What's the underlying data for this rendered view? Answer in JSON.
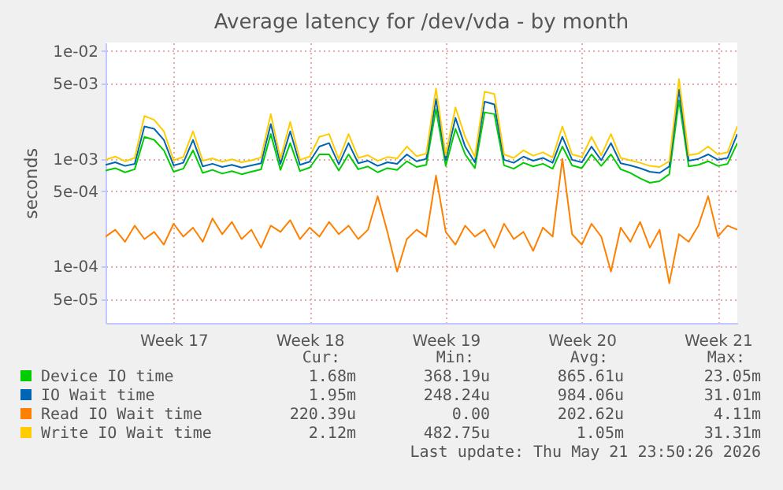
{
  "chart_data": {
    "type": "line",
    "title": "Average latency for /dev/vda - by month",
    "ylabel": "seconds",
    "log": "y",
    "grid": true,
    "legend": "bottom",
    "xlim": [
      "2026-04-20T00:00",
      "2026-05-22T12:00"
    ],
    "xticks": [
      {
        "value": "2026-04-23T12:00",
        "label": "Week 17"
      },
      {
        "value": "2026-04-30T12:00",
        "label": "Week 18"
      },
      {
        "value": "2026-05-07T12:00",
        "label": "Week 19"
      },
      {
        "value": "2026-05-14T12:00",
        "label": "Week 20"
      },
      {
        "value": "2026-05-21T12:00",
        "label": "Week 21"
      }
    ],
    "ylim": [
      3e-05,
      0.012
    ],
    "yticks": [
      {
        "value": 5e-05,
        "label": "5e-05"
      },
      {
        "value": 0.0001,
        "label": "1e-04"
      },
      {
        "value": 0.0005,
        "label": "5e-04"
      },
      {
        "value": 0.001,
        "label": "1e-03"
      },
      {
        "value": 0.005,
        "label": "5e-03"
      },
      {
        "value": 0.01,
        "label": "1e-02"
      }
    ],
    "x": [
      "2026-04-20T00:00",
      "2026-04-20T12:00",
      "2026-04-21T00:00",
      "2026-04-21T12:00",
      "2026-04-22T00:00",
      "2026-04-22T12:00",
      "2026-04-23T00:00",
      "2026-04-23T12:00",
      "2026-04-24T00:00",
      "2026-04-24T12:00",
      "2026-04-25T00:00",
      "2026-04-25T12:00",
      "2026-04-26T00:00",
      "2026-04-26T12:00",
      "2026-04-27T00:00",
      "2026-04-27T12:00",
      "2026-04-28T00:00",
      "2026-04-28T12:00",
      "2026-04-29T00:00",
      "2026-04-29T12:00",
      "2026-04-30T00:00",
      "2026-04-30T12:00",
      "2026-05-01T00:00",
      "2026-05-01T12:00",
      "2026-05-02T00:00",
      "2026-05-02T12:00",
      "2026-05-03T00:00",
      "2026-05-03T12:00",
      "2026-05-04T00:00",
      "2026-05-04T12:00",
      "2026-05-05T00:00",
      "2026-05-05T12:00",
      "2026-05-06T00:00",
      "2026-05-06T12:00",
      "2026-05-07T00:00",
      "2026-05-07T12:00",
      "2026-05-08T00:00",
      "2026-05-08T12:00",
      "2026-05-09T00:00",
      "2026-05-09T12:00",
      "2026-05-10T00:00",
      "2026-05-10T12:00",
      "2026-05-11T00:00",
      "2026-05-11T12:00",
      "2026-05-12T00:00",
      "2026-05-12T12:00",
      "2026-05-13T00:00",
      "2026-05-13T12:00",
      "2026-05-14T00:00",
      "2026-05-14T12:00",
      "2026-05-15T00:00",
      "2026-05-15T12:00",
      "2026-05-16T00:00",
      "2026-05-16T12:00",
      "2026-05-17T00:00",
      "2026-05-17T12:00",
      "2026-05-18T00:00",
      "2026-05-18T12:00",
      "2026-05-19T00:00",
      "2026-05-19T12:00",
      "2026-05-20T00:00",
      "2026-05-20T12:00",
      "2026-05-21T00:00",
      "2026-05-21T12:00",
      "2026-05-22T00:00",
      "2026-05-22T12:00"
    ],
    "series": [
      {
        "name": "Device IO time",
        "color": "#00cc00",
        "values": [
          0.00078,
          0.00082,
          0.00075,
          0.0008,
          0.0016,
          0.0015,
          0.0012,
          0.00076,
          0.00081,
          0.0012,
          0.00074,
          0.00079,
          0.00073,
          0.00077,
          0.00072,
          0.00076,
          0.0008,
          0.0017,
          0.00079,
          0.0014,
          0.00077,
          0.00083,
          0.0011,
          0.0011,
          0.00078,
          0.0011,
          0.0008,
          0.00085,
          0.00075,
          0.00082,
          0.00079,
          0.00095,
          0.00084,
          0.00088,
          0.0029,
          0.00086,
          0.0019,
          0.0011,
          0.00082,
          0.0027,
          0.0026,
          0.00087,
          0.00081,
          0.00092,
          0.00085,
          0.0009,
          0.00081,
          0.0013,
          0.00087,
          0.00082,
          0.0011,
          0.00086,
          0.0011,
          0.0008,
          0.00074,
          0.00066,
          0.0006,
          0.00062,
          0.00072,
          0.0035,
          0.00085,
          0.00088,
          0.00095,
          0.00086,
          0.0009,
          0.0014
        ]
      },
      {
        "name": "IO Wait time",
        "color": "#0066b3",
        "values": [
          0.00088,
          0.00093,
          0.00086,
          0.0009,
          0.002,
          0.0019,
          0.0015,
          0.00087,
          0.00092,
          0.0015,
          0.00085,
          0.0009,
          0.00084,
          0.00088,
          0.00083,
          0.00087,
          0.00091,
          0.0021,
          0.0009,
          0.0018,
          0.00088,
          0.00094,
          0.0013,
          0.0014,
          0.00089,
          0.0014,
          0.00091,
          0.00096,
          0.00086,
          0.00093,
          0.0009,
          0.0011,
          0.00095,
          0.001,
          0.0036,
          0.00097,
          0.0024,
          0.0013,
          0.00093,
          0.0034,
          0.0032,
          0.00098,
          0.00092,
          0.00105,
          0.00096,
          0.00102,
          0.00092,
          0.0016,
          0.00098,
          0.00093,
          0.0013,
          0.00097,
          0.0014,
          0.00091,
          0.00087,
          0.00082,
          0.00076,
          0.00074,
          0.00085,
          0.0044,
          0.00096,
          0.001,
          0.0011,
          0.00098,
          0.00102,
          0.0017
        ]
      },
      {
        "name": "Read IO Wait time",
        "color": "#ff8000",
        "values": [
          0.00019,
          0.00022,
          0.00017,
          0.00024,
          0.00018,
          0.00021,
          0.00016,
          0.00025,
          0.00019,
          0.00023,
          0.00017,
          0.00028,
          0.0002,
          0.00026,
          0.00018,
          0.00022,
          0.00015,
          0.00024,
          0.00021,
          0.00027,
          0.00018,
          0.00023,
          0.00019,
          0.00026,
          0.0002,
          0.00024,
          0.00018,
          0.00022,
          0.00045,
          0.00021,
          9e-05,
          0.00018,
          0.00022,
          0.00019,
          0.0007,
          0.00021,
          0.00016,
          0.00024,
          0.00019,
          0.00022,
          0.00015,
          0.00025,
          0.00018,
          0.00021,
          0.00014,
          0.00023,
          0.00019,
          0.001,
          0.0002,
          0.00016,
          0.00025,
          0.00019,
          9e-05,
          0.00023,
          0.00017,
          0.00026,
          0.00015,
          0.00022,
          7e-05,
          0.0002,
          0.00017,
          0.00024,
          0.00045,
          0.00019,
          0.00024,
          0.00022
        ]
      },
      {
        "name": "Write IO Wait time",
        "color": "#ffcc00",
        "values": [
          0.00098,
          0.00105,
          0.00095,
          0.00102,
          0.0025,
          0.0023,
          0.0018,
          0.00097,
          0.00104,
          0.0018,
          0.00096,
          0.00101,
          0.00094,
          0.00099,
          0.00093,
          0.00097,
          0.00103,
          0.0026,
          0.001,
          0.0022,
          0.00098,
          0.00105,
          0.0016,
          0.0017,
          0.00099,
          0.0017,
          0.00102,
          0.00108,
          0.00096,
          0.00104,
          0.00101,
          0.0013,
          0.00106,
          0.00112,
          0.0045,
          0.00108,
          0.003,
          0.0016,
          0.00104,
          0.0042,
          0.004,
          0.0011,
          0.00102,
          0.0012,
          0.00107,
          0.00115,
          0.00103,
          0.002,
          0.0011,
          0.00104,
          0.0016,
          0.00108,
          0.0017,
          0.00102,
          0.00097,
          0.00092,
          0.00086,
          0.00084,
          0.00095,
          0.0055,
          0.00108,
          0.00112,
          0.0013,
          0.0011,
          0.00115,
          0.002
        ]
      }
    ],
    "annotations": [
      "Cur:",
      "Min:",
      "Avg:",
      "Max:",
      "1.68m",
      "368.19u",
      "865.61u",
      "23.05m",
      "1.95m",
      "248.24u",
      "984.06u",
      "31.01m",
      "220.39u",
      "0.00",
      "202.62u",
      "4.11m",
      "2.12m",
      "482.75u",
      "1.05m",
      "31.31m",
      "Last update: Thu May 21 23:50:26 2026"
    ]
  }
}
